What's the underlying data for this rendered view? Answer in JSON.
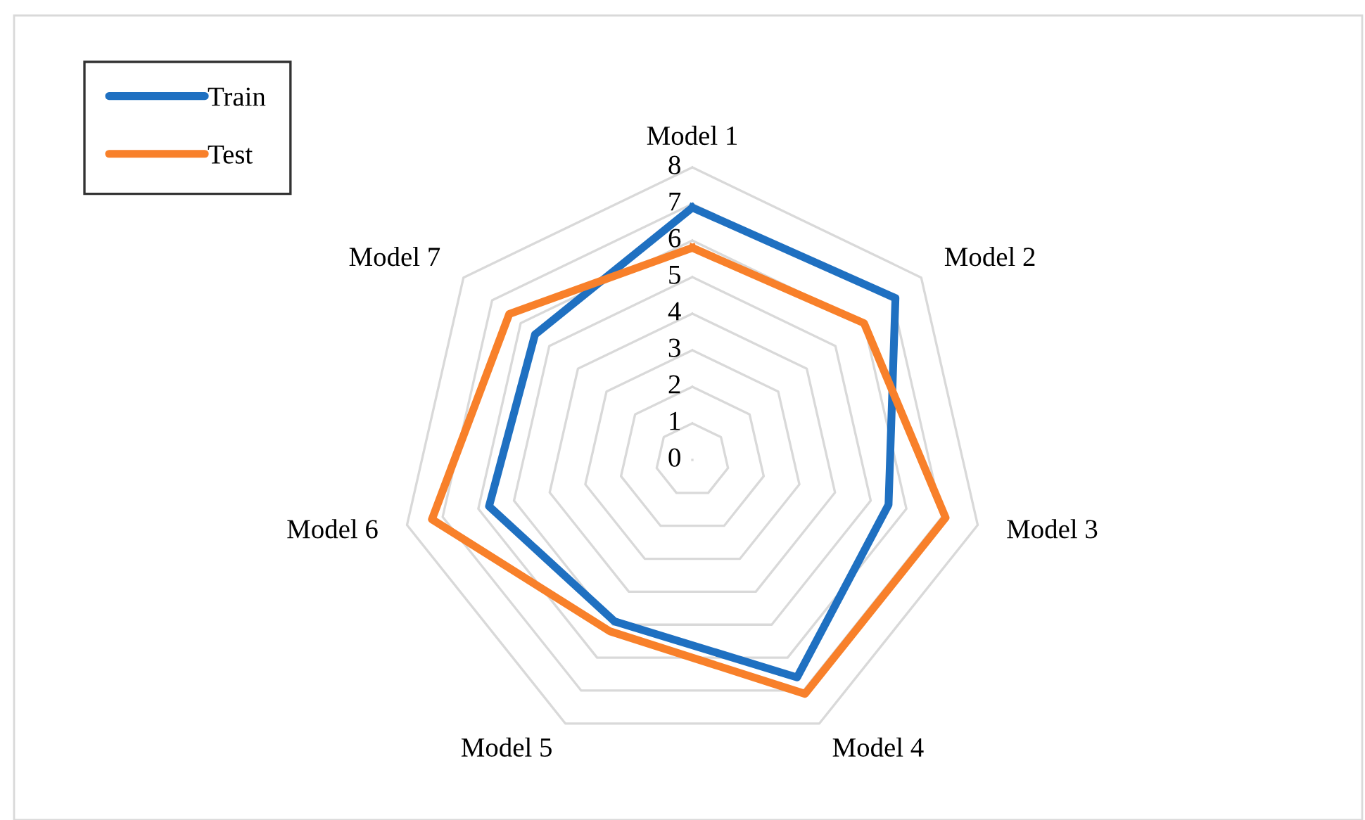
{
  "chart_data": {
    "type": "radar",
    "categories": [
      "Model 1",
      "Model 2",
      "Model 3",
      "Model 4",
      "Model 5",
      "Model 6",
      "Model 7"
    ],
    "series": [
      {
        "name": "Train",
        "color": "#1f70c1",
        "values": [
          6.9,
          7.1,
          5.5,
          6.6,
          4.9,
          5.7,
          5.5
        ]
      },
      {
        "name": "Test",
        "color": "#f8802a",
        "values": [
          5.8,
          6.0,
          7.1,
          7.1,
          5.2,
          7.3,
          6.4
        ]
      }
    ],
    "ylim": [
      0,
      8
    ],
    "yticks": [
      0,
      1,
      2,
      3,
      4,
      5,
      6,
      7,
      8
    ],
    "grid": true,
    "legend": "top left"
  }
}
